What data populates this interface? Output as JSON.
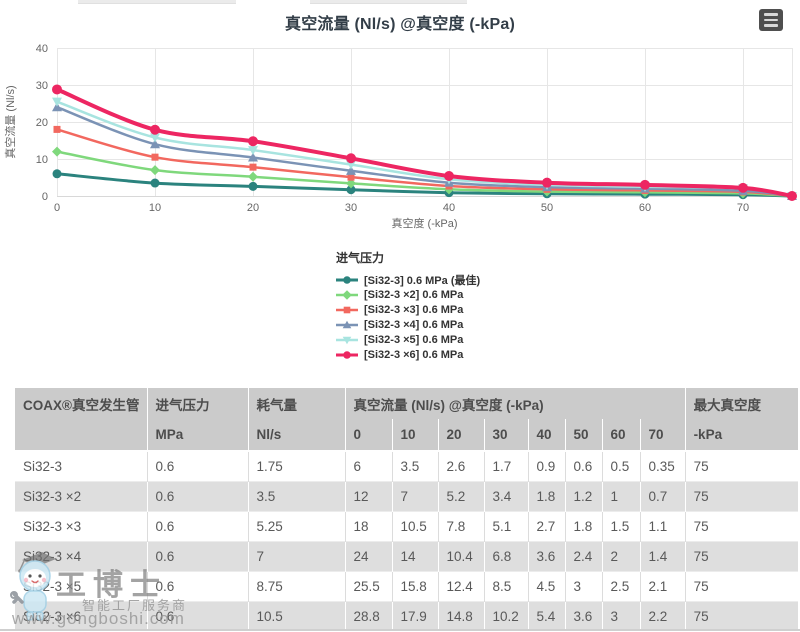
{
  "chart_data": {
    "type": "line",
    "title": "真空流量 (Nl/s) @真空度 (-kPa)",
    "xlabel": "真空度 (-kPa)",
    "ylabel": "真空流量 (Nl/s)",
    "xlim": [
      0,
      75
    ],
    "ylim": [
      0,
      40
    ],
    "x_ticks": [
      0,
      10,
      20,
      30,
      40,
      50,
      60,
      70
    ],
    "y_ticks": [
      0,
      10,
      20,
      30,
      40
    ],
    "grid": true,
    "legend_title": "进气压力",
    "legend_position": "bottom-center",
    "layout": {
      "axis_color": "#666666",
      "grid_color": "#e6e6e6",
      "axis_line_color": "#d8d8d8",
      "title_color": "#333e48"
    },
    "x": [
      0,
      10,
      20,
      30,
      40,
      50,
      60,
      70,
      75
    ],
    "series": [
      {
        "name": "[Si32-3] 0.6 MPa (最佳)",
        "color": "#2b837e",
        "marker": "circle",
        "line_width": 3,
        "marker_radius": 4.5,
        "values": [
          6,
          3.5,
          2.6,
          1.7,
          0.9,
          0.6,
          0.5,
          0.35,
          0
        ]
      },
      {
        "name": "[Si32-3 ×2] 0.6 MPa",
        "color": "#7fd87c",
        "marker": "diamond",
        "line_width": 2.5,
        "marker_radius": 4,
        "values": [
          12,
          7,
          5.2,
          3.4,
          1.8,
          1.2,
          1,
          0.7,
          0
        ]
      },
      {
        "name": "[Si32-3 ×3] 0.6 MPa",
        "color": "#f2685f",
        "marker": "square",
        "line_width": 2.5,
        "marker_radius": 4,
        "values": [
          18,
          10.5,
          7.8,
          5.1,
          2.7,
          1.8,
          1.5,
          1.1,
          0
        ]
      },
      {
        "name": "[Si32-3 ×4] 0.6 MPa",
        "color": "#7b93b5",
        "marker": "triangle-up",
        "line_width": 2.5,
        "marker_radius": 4.5,
        "values": [
          24,
          14,
          10.4,
          6.8,
          3.6,
          2.4,
          2,
          1.4,
          0
        ]
      },
      {
        "name": "[Si32-3 ×5] 0.6 MPa",
        "color": "#a8e4e0",
        "marker": "triangle-down",
        "line_width": 2.5,
        "marker_radius": 4.5,
        "values": [
          25.5,
          15.8,
          12.4,
          8.5,
          4.5,
          3,
          2.5,
          2.1,
          0
        ]
      },
      {
        "name": "[Si32-3 ×6] 0.6 MPa",
        "color": "#ed2662",
        "marker": "circle",
        "line_width": 4,
        "marker_radius": 5,
        "values": [
          28.8,
          17.9,
          14.8,
          10.2,
          5.4,
          3.6,
          3,
          2.2,
          0
        ]
      }
    ]
  },
  "menu_button": {
    "icon": "hamburger-menu-icon"
  },
  "table": {
    "header_top": [
      "COAX®真空发生管",
      "进气压力",
      "耗气量",
      "真空流量 (Nl/s) @真空度 (-kPa)",
      "最大真空度"
    ],
    "header_sub": [
      "",
      "MPa",
      "Nl/s",
      "0",
      "10",
      "20",
      "30",
      "40",
      "50",
      "60",
      "70",
      "-kPa"
    ],
    "rows": [
      [
        "Si32-3",
        "0.6",
        "1.75",
        "6",
        "3.5",
        "2.6",
        "1.7",
        "0.9",
        "0.6",
        "0.5",
        "0.35",
        "75"
      ],
      [
        "Si32-3 ×2",
        "0.6",
        "3.5",
        "12",
        "7",
        "5.2",
        "3.4",
        "1.8",
        "1.2",
        "1",
        "0.7",
        "75"
      ],
      [
        "Si32-3 ×3",
        "0.6",
        "5.25",
        "18",
        "10.5",
        "7.8",
        "5.1",
        "2.7",
        "1.8",
        "1.5",
        "1.1",
        "75"
      ],
      [
        "Si32-3 ×4",
        "0.6",
        "7",
        "24",
        "14",
        "10.4",
        "6.8",
        "3.6",
        "2.4",
        "2",
        "1.4",
        "75"
      ],
      [
        "Si32-3 ×5",
        "0.6",
        "8.75",
        "25.5",
        "15.8",
        "12.4",
        "8.5",
        "4.5",
        "3",
        "2.5",
        "2.1",
        "75"
      ],
      [
        "Si32-3 ×6",
        "0.6",
        "10.5",
        "28.8",
        "17.9",
        "14.8",
        "10.2",
        "5.4",
        "3.6",
        "3",
        "2.2",
        "75"
      ]
    ],
    "style": {
      "header_bg": "#cbcbcb",
      "stripe_bg": "#dedede",
      "text_color": "#595959"
    }
  },
  "watermark": {
    "brand": "工博士",
    "tagline": "智能工厂服务商",
    "url": "www.gongboshi.com",
    "mascot": "gongboshi-robot-mascot-icon"
  }
}
